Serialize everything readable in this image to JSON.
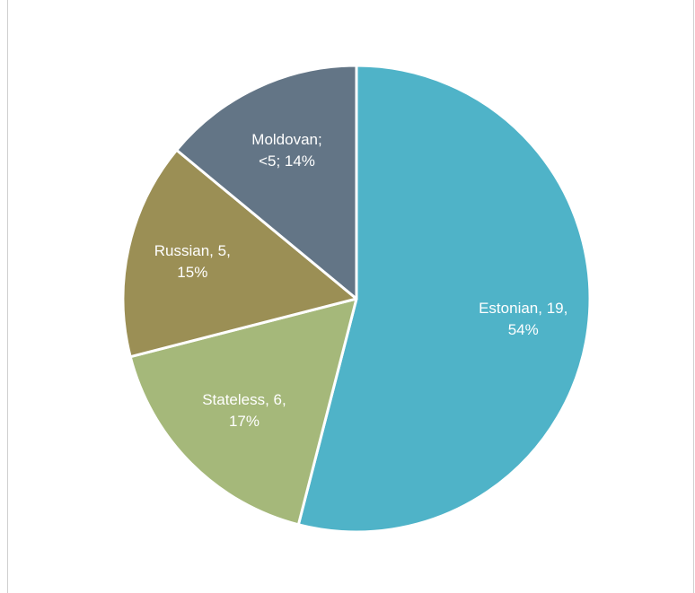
{
  "chart_data": {
    "type": "pie",
    "values": [
      54,
      17,
      15,
      14
    ],
    "value_labels": [
      "Estonian, 19, 54%",
      "Stateless, 6, 17%",
      "Russian, 5, 15%",
      "Moldovan; <5; 14%"
    ],
    "colors": [
      "#4fb3c8",
      "#a5b87a",
      "#9b8f55",
      "#637586"
    ]
  }
}
